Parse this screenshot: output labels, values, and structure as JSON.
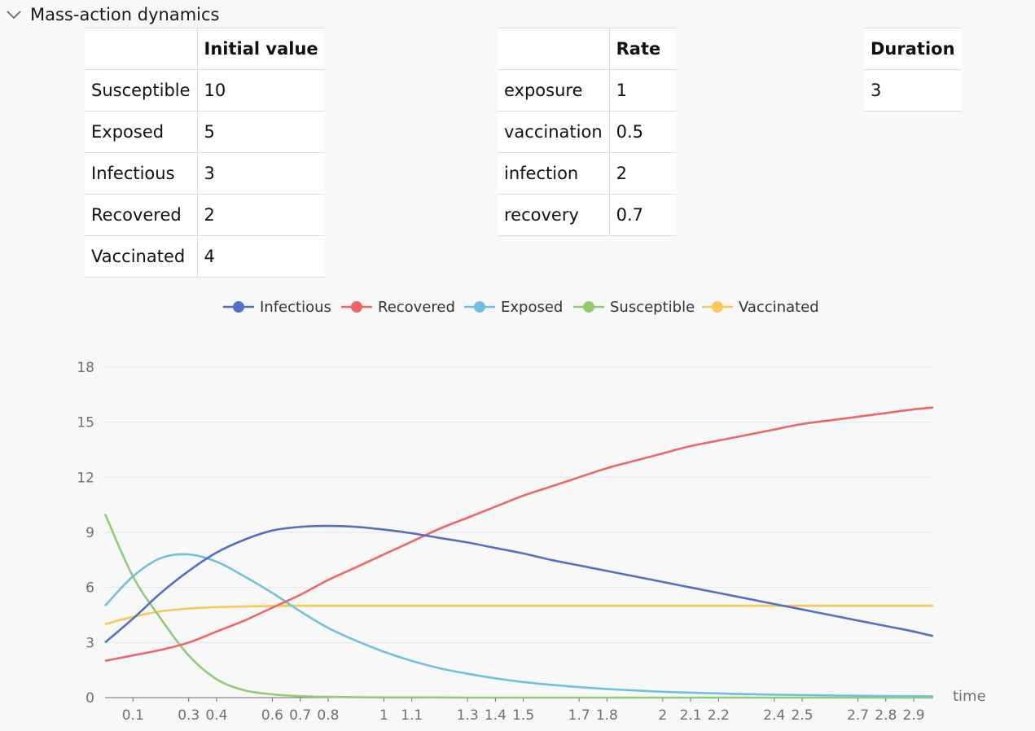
{
  "section": {
    "title": "Mass-action dynamics",
    "toggle_icon": "chevron-down-icon"
  },
  "initial_values": {
    "headers": [
      "",
      "Initial value"
    ],
    "rows": [
      [
        "Susceptible",
        "10"
      ],
      [
        "Exposed",
        "5"
      ],
      [
        "Infectious",
        "3"
      ],
      [
        "Recovered",
        "2"
      ],
      [
        "Vaccinated",
        "4"
      ]
    ]
  },
  "rates": {
    "headers": [
      "",
      "Rate"
    ],
    "rows": [
      [
        "exposure",
        "1"
      ],
      [
        "vaccination",
        "0.5"
      ],
      [
        "infection",
        "2"
      ],
      [
        "recovery",
        "0.7"
      ]
    ]
  },
  "duration": {
    "header": "Duration",
    "value": "3"
  },
  "chart_data": {
    "type": "line",
    "xlabel": "time",
    "ylabel": "",
    "xlim": [
      0,
      2.97
    ],
    "ylim": [
      0,
      18
    ],
    "yticks": [
      0,
      3,
      6,
      9,
      12,
      15,
      18
    ],
    "xticks": [
      0.1,
      0.3,
      0.4,
      0.6,
      0.7,
      0.8,
      1,
      1.1,
      1.3,
      1.4,
      1.5,
      1.7,
      1.8,
      2,
      2.1,
      2.2,
      2.4,
      2.5,
      2.7,
      2.8,
      2.9
    ],
    "grid": "horizontal",
    "legend": "top-center",
    "x": [
      0,
      0.1,
      0.2,
      0.3,
      0.4,
      0.5,
      0.6,
      0.7,
      0.8,
      0.9,
      1.0,
      1.1,
      1.2,
      1.3,
      1.4,
      1.5,
      1.6,
      1.7,
      1.8,
      1.9,
      2.0,
      2.1,
      2.2,
      2.3,
      2.4,
      2.5,
      2.6,
      2.7,
      2.8,
      2.9,
      2.97
    ],
    "series": [
      {
        "name": "Infectious",
        "color": "#5470c6",
        "values": [
          3.0,
          4.3,
          5.7,
          6.9,
          7.9,
          8.6,
          9.1,
          9.3,
          9.35,
          9.3,
          9.15,
          8.95,
          8.7,
          8.45,
          8.15,
          7.85,
          7.5,
          7.2,
          6.9,
          6.6,
          6.3,
          6.0,
          5.7,
          5.4,
          5.1,
          4.8,
          4.5,
          4.2,
          3.9,
          3.6,
          3.35
        ]
      },
      {
        "name": "Recovered",
        "color": "#ee6666",
        "values": [
          2.0,
          2.3,
          2.6,
          3.0,
          3.6,
          4.2,
          4.9,
          5.6,
          6.4,
          7.1,
          7.8,
          8.5,
          9.2,
          9.8,
          10.4,
          11.0,
          11.5,
          12.0,
          12.5,
          12.9,
          13.3,
          13.7,
          14.0,
          14.3,
          14.6,
          14.9,
          15.1,
          15.3,
          15.5,
          15.7,
          15.8
        ]
      },
      {
        "name": "Exposed",
        "color": "#73c0de",
        "values": [
          5.0,
          6.6,
          7.6,
          7.8,
          7.4,
          6.6,
          5.7,
          4.7,
          3.8,
          3.1,
          2.5,
          2.0,
          1.6,
          1.3,
          1.05,
          0.85,
          0.7,
          0.57,
          0.47,
          0.39,
          0.32,
          0.27,
          0.23,
          0.19,
          0.16,
          0.14,
          0.12,
          0.1,
          0.09,
          0.08,
          0.07
        ]
      },
      {
        "name": "Susceptible",
        "color": "#91cc75",
        "values": [
          10.0,
          6.6,
          4.3,
          2.3,
          1.0,
          0.4,
          0.18,
          0.08,
          0.04,
          0.02,
          0.01,
          0.01,
          0.01,
          0.0,
          0.0,
          0.0,
          0.0,
          0.0,
          0.0,
          0.0,
          0.0,
          0.0,
          0.0,
          0.0,
          0.0,
          0.0,
          0.0,
          0.0,
          0.0,
          0.0,
          0.0
        ]
      },
      {
        "name": "Vaccinated",
        "color": "#fac858",
        "values": [
          4.0,
          4.4,
          4.7,
          4.85,
          4.93,
          4.97,
          4.99,
          5.0,
          5.0,
          5.0,
          5.0,
          5.0,
          5.0,
          5.0,
          5.0,
          5.0,
          5.0,
          5.0,
          5.0,
          5.0,
          5.0,
          5.0,
          5.0,
          5.0,
          5.0,
          5.0,
          5.0,
          5.0,
          5.0,
          5.0,
          5.0
        ]
      }
    ],
    "legend_order": [
      "Infectious",
      "Recovered",
      "Exposed",
      "Susceptible",
      "Vaccinated"
    ]
  }
}
